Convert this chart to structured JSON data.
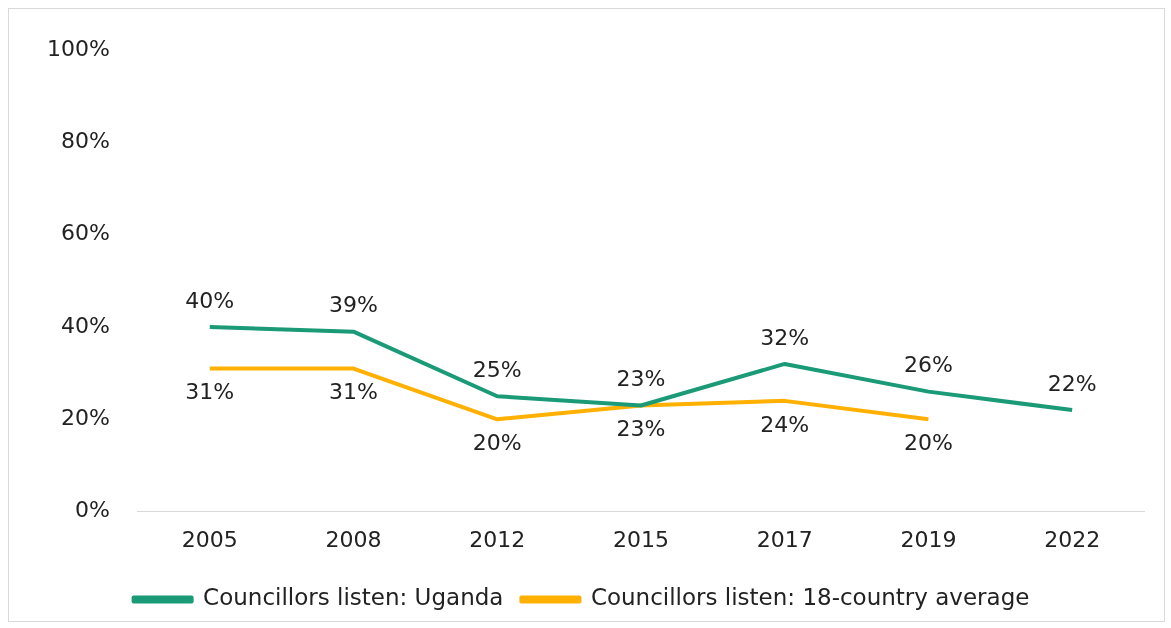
{
  "chart_data": {
    "type": "line",
    "categories": [
      "2005",
      "2008",
      "2012",
      "2015",
      "2017",
      "2019",
      "2022"
    ],
    "series": [
      {
        "name": "Councillors listen: Uganda",
        "color": "#1a9a77",
        "values": [
          40,
          39,
          25,
          23,
          32,
          26,
          22
        ],
        "value_labels": [
          "40%",
          "39%",
          "25%",
          "23%",
          "32%",
          "26%",
          "22%"
        ]
      },
      {
        "name": "Councillors listen: 18-country average",
        "color": "#ffb000",
        "values": [
          31,
          31,
          20,
          23,
          24,
          20,
          null
        ],
        "value_labels": [
          "31%",
          "31%",
          "20%",
          "23%",
          "24%",
          "20%",
          null
        ]
      }
    ],
    "ylim": [
      0,
      100
    ],
    "yticks": [
      {
        "value": 0,
        "label": "0%"
      },
      {
        "value": 20,
        "label": "20%"
      },
      {
        "value": 40,
        "label": "40%"
      },
      {
        "value": 60,
        "label": "60%"
      },
      {
        "value": 80,
        "label": "80%"
      },
      {
        "value": 100,
        "label": "100%"
      }
    ],
    "grid": false,
    "legend": "bottom",
    "marker": "none",
    "line_style": "solid"
  }
}
